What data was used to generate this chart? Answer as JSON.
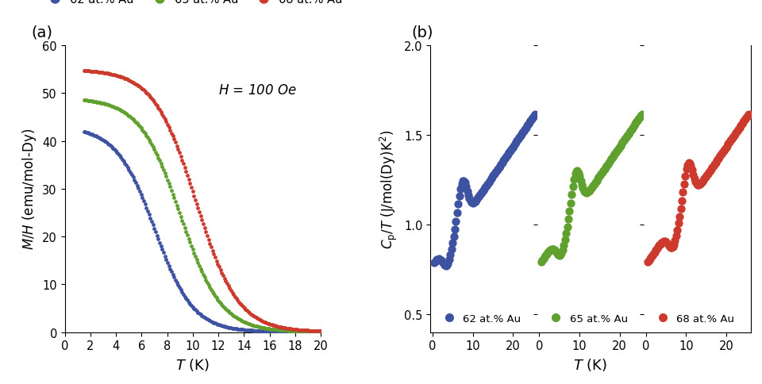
{
  "panel_a_label": "(a)",
  "panel_b_label": "(b)",
  "col62": "#3d52a1",
  "col65": "#5fa02e",
  "col68": "#cc3a2e",
  "legend_labels": [
    "62 at.% Au",
    "65 at.% Au",
    "68 at.% Au"
  ],
  "panel_a_xlabel": "T (K)",
  "panel_a_ylabel": "M/H (emu/mol-Dy)",
  "panel_a_annotation": "H = 100 Oe",
  "panel_a_xlim": [
    0,
    20
  ],
  "panel_a_ylim": [
    0,
    60
  ],
  "panel_a_xticks": [
    0,
    2,
    4,
    6,
    8,
    10,
    12,
    14,
    16,
    18,
    20
  ],
  "panel_a_yticks": [
    0,
    10,
    20,
    30,
    40,
    50,
    60
  ],
  "panel_b_xlabel": "T (K)",
  "panel_b_ylabel": "C_p/T (J/mol(Dy)K^2)",
  "panel_b_ylim": [
    0.4,
    2.0
  ],
  "panel_b_yticks": [
    0.5,
    1.0,
    1.5,
    2.0
  ],
  "background_color": "#ffffff",
  "dot_size_a": 12,
  "dot_size_b": 55
}
